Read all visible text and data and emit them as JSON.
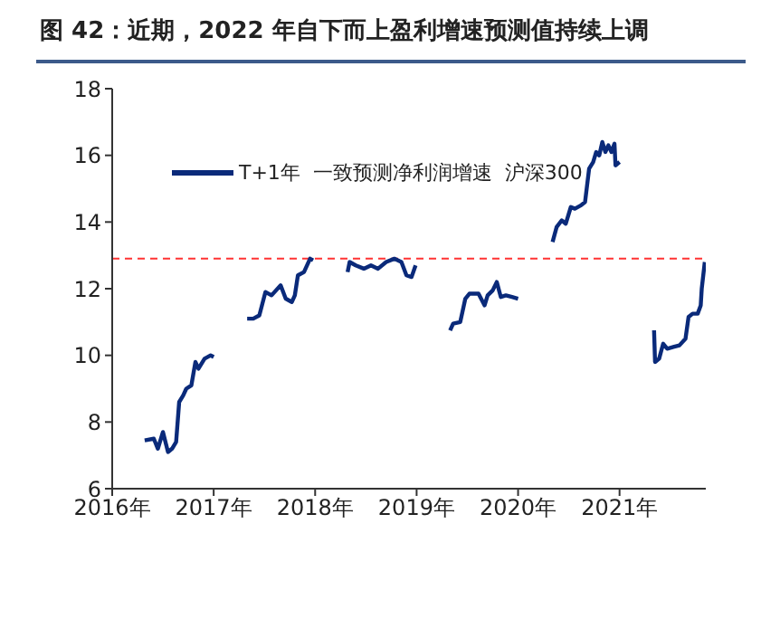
{
  "chart_data": {
    "type": "line",
    "title": "图 42：近期，2022 年自下而上盈利增速预测值持续上调",
    "x": [
      2016.32,
      2016.41,
      2016.45,
      2016.5,
      2016.55,
      2016.59,
      2016.63,
      2016.66,
      2016.7,
      2016.73,
      2016.78,
      2016.82,
      2016.85,
      2016.91,
      2016.97,
      2017.0,
      2017.16,
      2017.33,
      2017.39,
      2017.45,
      2017.51,
      2017.57,
      2017.66,
      2017.71,
      2017.77,
      2017.8,
      2017.83,
      2017.89,
      2017.95,
      2017.98,
      2018.15,
      2018.32,
      2018.34,
      2018.4,
      2018.48,
      2018.55,
      2018.62,
      2018.7,
      2018.78,
      2018.85,
      2018.9,
      2018.95,
      2018.99,
      2019.16,
      2019.33,
      2019.36,
      2019.43,
      2019.48,
      2019.52,
      2019.61,
      2019.67,
      2019.7,
      2019.75,
      2019.79,
      2019.83,
      2019.88,
      2019.94,
      2020.0,
      2020.17,
      2020.34,
      2020.38,
      2020.43,
      2020.47,
      2020.52,
      2020.56,
      2020.62,
      2020.66,
      2020.7,
      2020.74,
      2020.77,
      2020.8,
      2020.83,
      2020.86,
      2020.89,
      2020.92,
      2020.95,
      2020.96,
      2021.0,
      2021.17,
      2021.34,
      2021.35,
      2021.39,
      2021.43,
      2021.47,
      2021.53,
      2021.59,
      2021.65,
      2021.68,
      2021.72,
      2021.77,
      2021.8,
      2021.81,
      2021.84
    ],
    "series": [
      {
        "name": "T+1年  一致预测净利润增速  沪深300",
        "color": "#0a2a7a",
        "values": [
          7.45,
          7.5,
          7.2,
          7.7,
          7.1,
          7.2,
          7.4,
          8.6,
          8.8,
          9.0,
          9.1,
          9.8,
          9.6,
          9.9,
          10.0,
          9.95,
          null,
          11.1,
          11.1,
          11.2,
          11.9,
          11.8,
          12.1,
          11.7,
          11.6,
          11.8,
          12.4,
          12.5,
          12.9,
          12.85,
          null,
          12.5,
          12.8,
          12.7,
          12.6,
          12.7,
          12.6,
          12.8,
          12.9,
          12.8,
          12.4,
          12.35,
          12.7,
          null,
          10.75,
          10.95,
          11.0,
          11.7,
          11.85,
          11.85,
          11.5,
          11.8,
          11.95,
          12.2,
          11.75,
          11.8,
          11.75,
          11.7,
          null,
          13.4,
          13.85,
          14.05,
          13.95,
          14.45,
          14.4,
          14.5,
          14.6,
          15.6,
          15.8,
          16.1,
          16.0,
          16.4,
          16.1,
          16.3,
          16.1,
          16.35,
          15.7,
          15.8,
          null,
          10.75,
          9.8,
          9.9,
          10.35,
          10.2,
          10.25,
          10.3,
          10.5,
          11.15,
          11.25,
          11.25,
          11.5,
          12.0,
          12.8
        ]
      }
    ],
    "xlim": [
      2016,
      2021.85
    ],
    "xticks": [
      {
        "value": 2016,
        "label": "2016年"
      },
      {
        "value": 2017,
        "label": "2017年"
      },
      {
        "value": 2018,
        "label": "2018年"
      },
      {
        "value": 2019,
        "label": "2019年"
      },
      {
        "value": 2020,
        "label": "2020年"
      },
      {
        "value": 2021,
        "label": "2021年"
      }
    ],
    "ylim": [
      6,
      18
    ],
    "yticks": [
      6,
      8,
      10,
      12,
      14,
      16,
      18
    ],
    "ref_lines": [
      {
        "axis": "y",
        "value": 12.9,
        "color": "#ff3333",
        "line_style": "dashed"
      }
    ],
    "legend": "top",
    "marker": "none",
    "line_style": "solid"
  }
}
